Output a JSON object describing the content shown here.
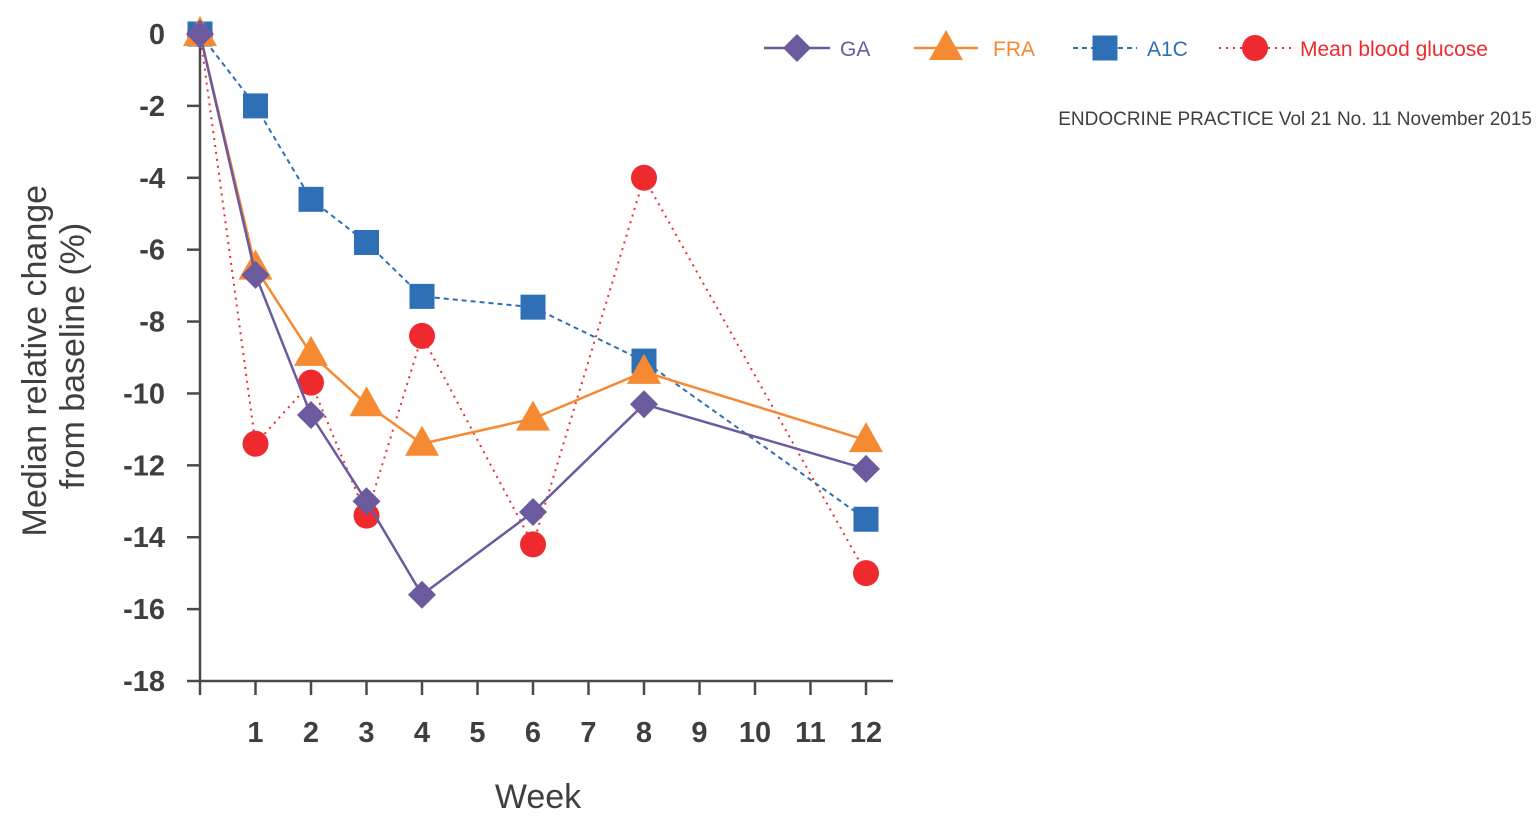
{
  "source_note": "ENDOCRINE PRACTICE Vol 21 No. 11 November 2015",
  "chart_data": {
    "type": "line",
    "title": "",
    "xlabel": "Week",
    "ylabel_lines": [
      "Median relative change",
      "from baseline (%)"
    ],
    "x_tick_labels": [
      "1",
      "2",
      "3",
      "4",
      "5",
      "6",
      "7",
      "8",
      "9",
      "10",
      "11",
      "12"
    ],
    "y_ticks": [
      0,
      -2,
      -4,
      -6,
      -8,
      -10,
      -12,
      -14,
      -16,
      -18
    ],
    "ylim": [
      -18,
      0
    ],
    "grid": false,
    "legend_position": "top-right",
    "series": [
      {
        "name": "GA",
        "color": "#6b5a9e",
        "style": "solid",
        "marker": "diamond",
        "points": [
          {
            "x": 0,
            "y": 0
          },
          {
            "x": 1,
            "y": -6.7
          },
          {
            "x": 2,
            "y": -10.6
          },
          {
            "x": 3,
            "y": -13.0
          },
          {
            "x": 4,
            "y": -15.6
          },
          {
            "x": 6,
            "y": -13.3
          },
          {
            "x": 8,
            "y": -10.3
          },
          {
            "x": 12,
            "y": -12.1
          }
        ]
      },
      {
        "name": "FRA",
        "color": "#f58a33",
        "style": "solid",
        "marker": "triangle",
        "points": [
          {
            "x": 0,
            "y": 0
          },
          {
            "x": 1,
            "y": -6.5
          },
          {
            "x": 2,
            "y": -8.9
          },
          {
            "x": 3,
            "y": -10.3
          },
          {
            "x": 4,
            "y": -11.4
          },
          {
            "x": 6,
            "y": -10.7
          },
          {
            "x": 8,
            "y": -9.4
          },
          {
            "x": 12,
            "y": -11.3
          }
        ]
      },
      {
        "name": "A1C",
        "color": "#2f6fb5",
        "style": "dashed",
        "marker": "square",
        "points": [
          {
            "x": 0,
            "y": 0
          },
          {
            "x": 1,
            "y": -2.0
          },
          {
            "x": 2,
            "y": -4.6
          },
          {
            "x": 3,
            "y": -5.8
          },
          {
            "x": 4,
            "y": -7.3
          },
          {
            "x": 6,
            "y": -7.6
          },
          {
            "x": 8,
            "y": -9.1
          },
          {
            "x": 12,
            "y": -13.5
          }
        ]
      },
      {
        "name": "Mean blood glucose",
        "color": "#ef2a2f",
        "style": "dotted",
        "marker": "circle",
        "points": [
          {
            "x": 0,
            "y": 0
          },
          {
            "x": 1,
            "y": -11.4
          },
          {
            "x": 2,
            "y": -9.7
          },
          {
            "x": 3,
            "y": -13.4
          },
          {
            "x": 4,
            "y": -8.4
          },
          {
            "x": 6,
            "y": -14.2
          },
          {
            "x": 8,
            "y": -4.0
          },
          {
            "x": 12,
            "y": -15.0
          }
        ]
      }
    ]
  }
}
